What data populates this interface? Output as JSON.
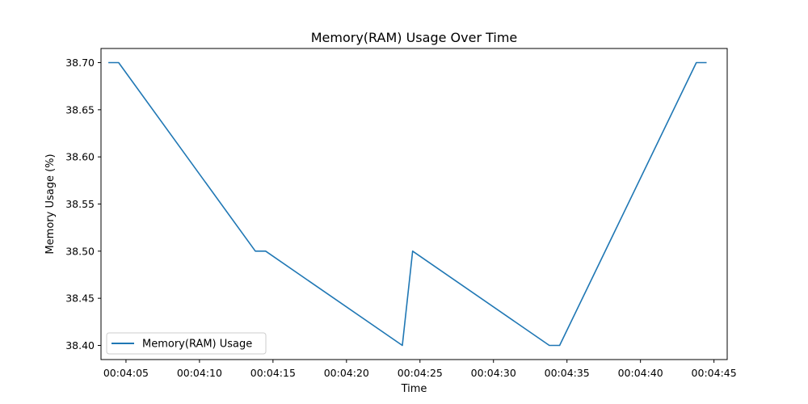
{
  "chart_data": {
    "type": "line",
    "title": "Memory(RAM) Usage Over Time",
    "xlabel": "Time",
    "ylabel": "Memory Usage (%)",
    "xlim": [
      "00:04:03.3",
      "00:04:45.9"
    ],
    "ylim": [
      38.385,
      38.715
    ],
    "x_ticks": [
      "00:04:05",
      "00:04:10",
      "00:04:15",
      "00:04:20",
      "00:04:25",
      "00:04:30",
      "00:04:35",
      "00:04:40",
      "00:04:45"
    ],
    "y_ticks": [
      "38.40",
      "38.45",
      "38.50",
      "38.55",
      "38.60",
      "38.65",
      "38.70"
    ],
    "grid": false,
    "legend_position": "lower-left",
    "series": [
      {
        "name": "Memory(RAM) Usage",
        "color": "#1f77b4",
        "x": [
          "00:04:03.8",
          "00:04:04.5",
          "00:04:13.8",
          "00:04:14.5",
          "00:04:23.8",
          "00:04:24.5",
          "00:04:33.8",
          "00:04:34.5",
          "00:04:43.8",
          "00:04:44.5"
        ],
        "y": [
          38.7,
          38.7,
          38.5,
          38.5,
          38.4,
          38.5,
          38.4,
          38.4,
          38.7,
          38.7
        ]
      }
    ]
  }
}
